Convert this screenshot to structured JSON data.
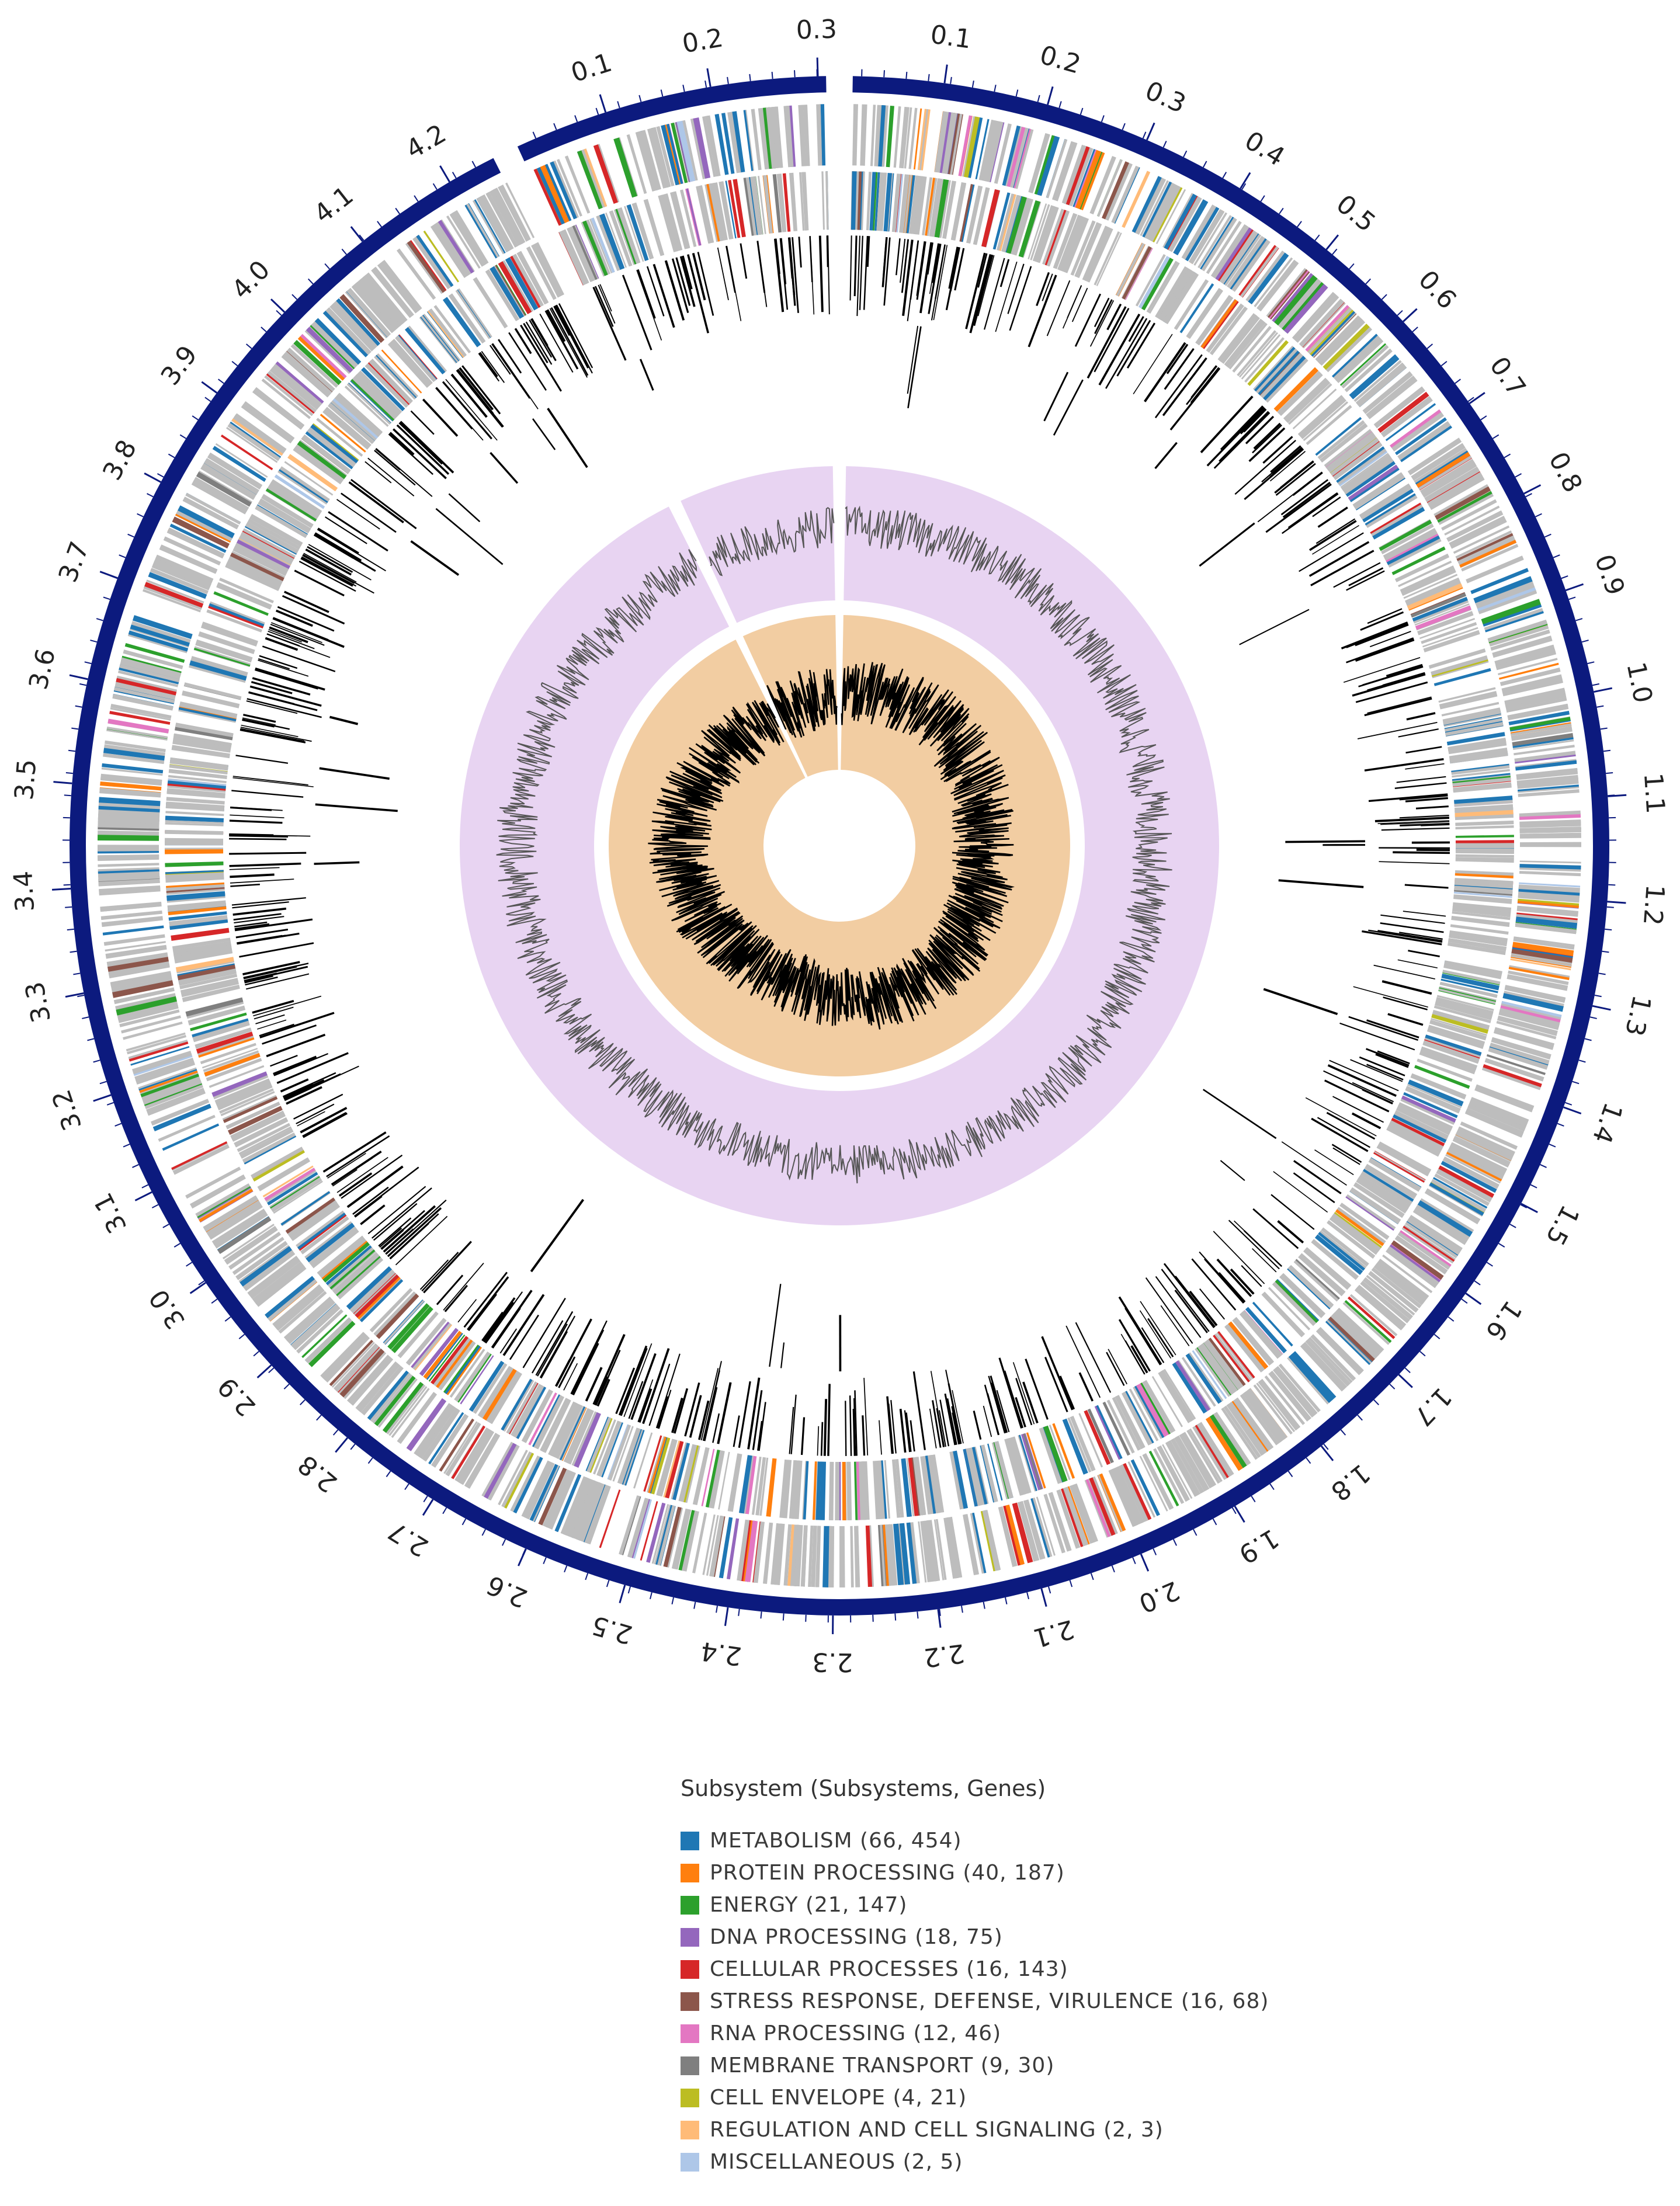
{
  "figure": {
    "genome_length_mb": 4.34,
    "colors": {
      "backbone": "#0c1a7e",
      "gene_default": "#bdbdbd",
      "feature_line": "#000000",
      "gc_skew_band": "#e8d4f2",
      "gc_skew_line": "#555555",
      "gc_content_band": "#f2cda2",
      "gc_content_line": "#000000"
    },
    "position_labels": [
      "0.1",
      "0.2",
      "0.3",
      "0.4",
      "0.5",
      "0.6",
      "0.7",
      "0.8",
      "0.9",
      "1.0",
      "1.1",
      "1.2",
      "1.3",
      "1.4",
      "1.5",
      "1.6",
      "1.7",
      "1.8",
      "1.9",
      "2.0",
      "2.1",
      "2.2",
      "2.3",
      "2.4",
      "2.5",
      "2.6",
      "2.7",
      "2.8",
      "2.9",
      "3.0",
      "3.1",
      "3.2",
      "3.3",
      "3.4",
      "3.5",
      "3.6",
      "3.7",
      "3.8",
      "3.9",
      "4.0",
      "4.1",
      "4.2",
      "0.1",
      "0.2",
      "0.3"
    ],
    "contig_breaks_mb": [
      0.0,
      4.03
    ]
  },
  "legend": {
    "title": "Subsystem (Subsystems, Genes)",
    "items": [
      {
        "label": "METABOLISM (66, 454)",
        "color": "#1f77b4"
      },
      {
        "label": "PROTEIN PROCESSING (40, 187)",
        "color": "#ff7f0e"
      },
      {
        "label": "ENERGY (21, 147)",
        "color": "#2ca02c"
      },
      {
        "label": "DNA PROCESSING (18, 75)",
        "color": "#9467bd"
      },
      {
        "label": "CELLULAR PROCESSES (16, 143)",
        "color": "#d62728"
      },
      {
        "label": "STRESS RESPONSE, DEFENSE, VIRULENCE (16, 68)",
        "color": "#8c564b"
      },
      {
        "label": "RNA PROCESSING (12, 46)",
        "color": "#e377c2"
      },
      {
        "label": "MEMBRANE TRANSPORT (9, 30)",
        "color": "#7f7f7f"
      },
      {
        "label": "CELL ENVELOPE (4, 21)",
        "color": "#bcbd22"
      },
      {
        "label": "REGULATION AND CELL SIGNALING (2, 3)",
        "color": "#ffbb78"
      },
      {
        "label": "MISCELLANEOUS (2, 5)",
        "color": "#aec7e8"
      }
    ]
  }
}
